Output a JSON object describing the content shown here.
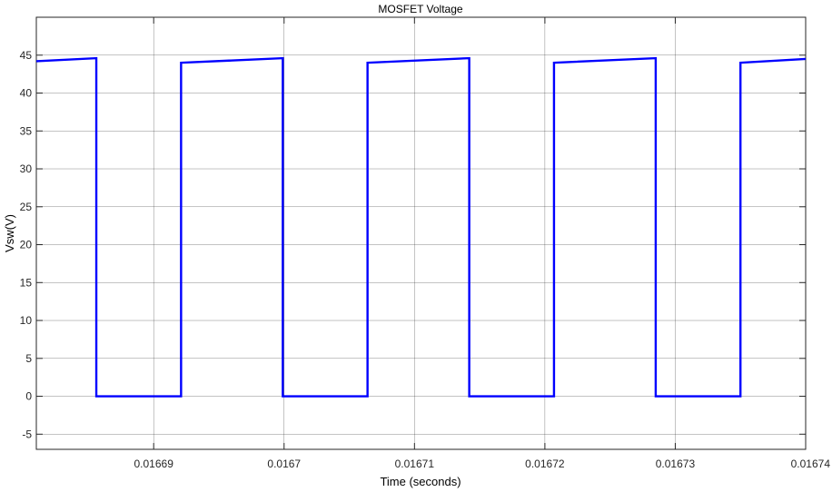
{
  "chart_data": {
    "type": "line",
    "title": "MOSFET Voltage",
    "xlabel": "Time (seconds)",
    "ylabel": "Vsw(V)",
    "xlim": [
      0.016681,
      0.01674
    ],
    "ylim": [
      -7,
      50
    ],
    "xticks": [
      0.01669,
      0.0167,
      0.01671,
      0.01672,
      0.01673,
      0.01674
    ],
    "xtick_labels": [
      "0.01669",
      "0.0167",
      "0.01671",
      "0.01672",
      "0.01673",
      "0.01674"
    ],
    "yticks": [
      -5,
      0,
      5,
      10,
      15,
      20,
      25,
      30,
      35,
      40,
      45
    ],
    "ytick_labels": [
      "-5",
      "0",
      "5",
      "10",
      "15",
      "20",
      "25",
      "30",
      "35",
      "40",
      "45"
    ],
    "grid": true,
    "series": [
      {
        "name": "Vsw",
        "color": "#0000ff",
        "x": [
          0.016681,
          0.0166856,
          0.0166856,
          0.0166921,
          0.0166921,
          0.0166999,
          0.0166999,
          0.0167064,
          0.0167064,
          0.0167142,
          0.0167142,
          0.0167207,
          0.0167207,
          0.0167285,
          0.0167285,
          0.016735,
          0.016735,
          0.01674
        ],
        "y": [
          44.2,
          44.6,
          0,
          0,
          44.0,
          44.6,
          0,
          0,
          44.0,
          44.6,
          0,
          0,
          44.0,
          44.6,
          0,
          0,
          44.0,
          44.5
        ]
      }
    ]
  }
}
